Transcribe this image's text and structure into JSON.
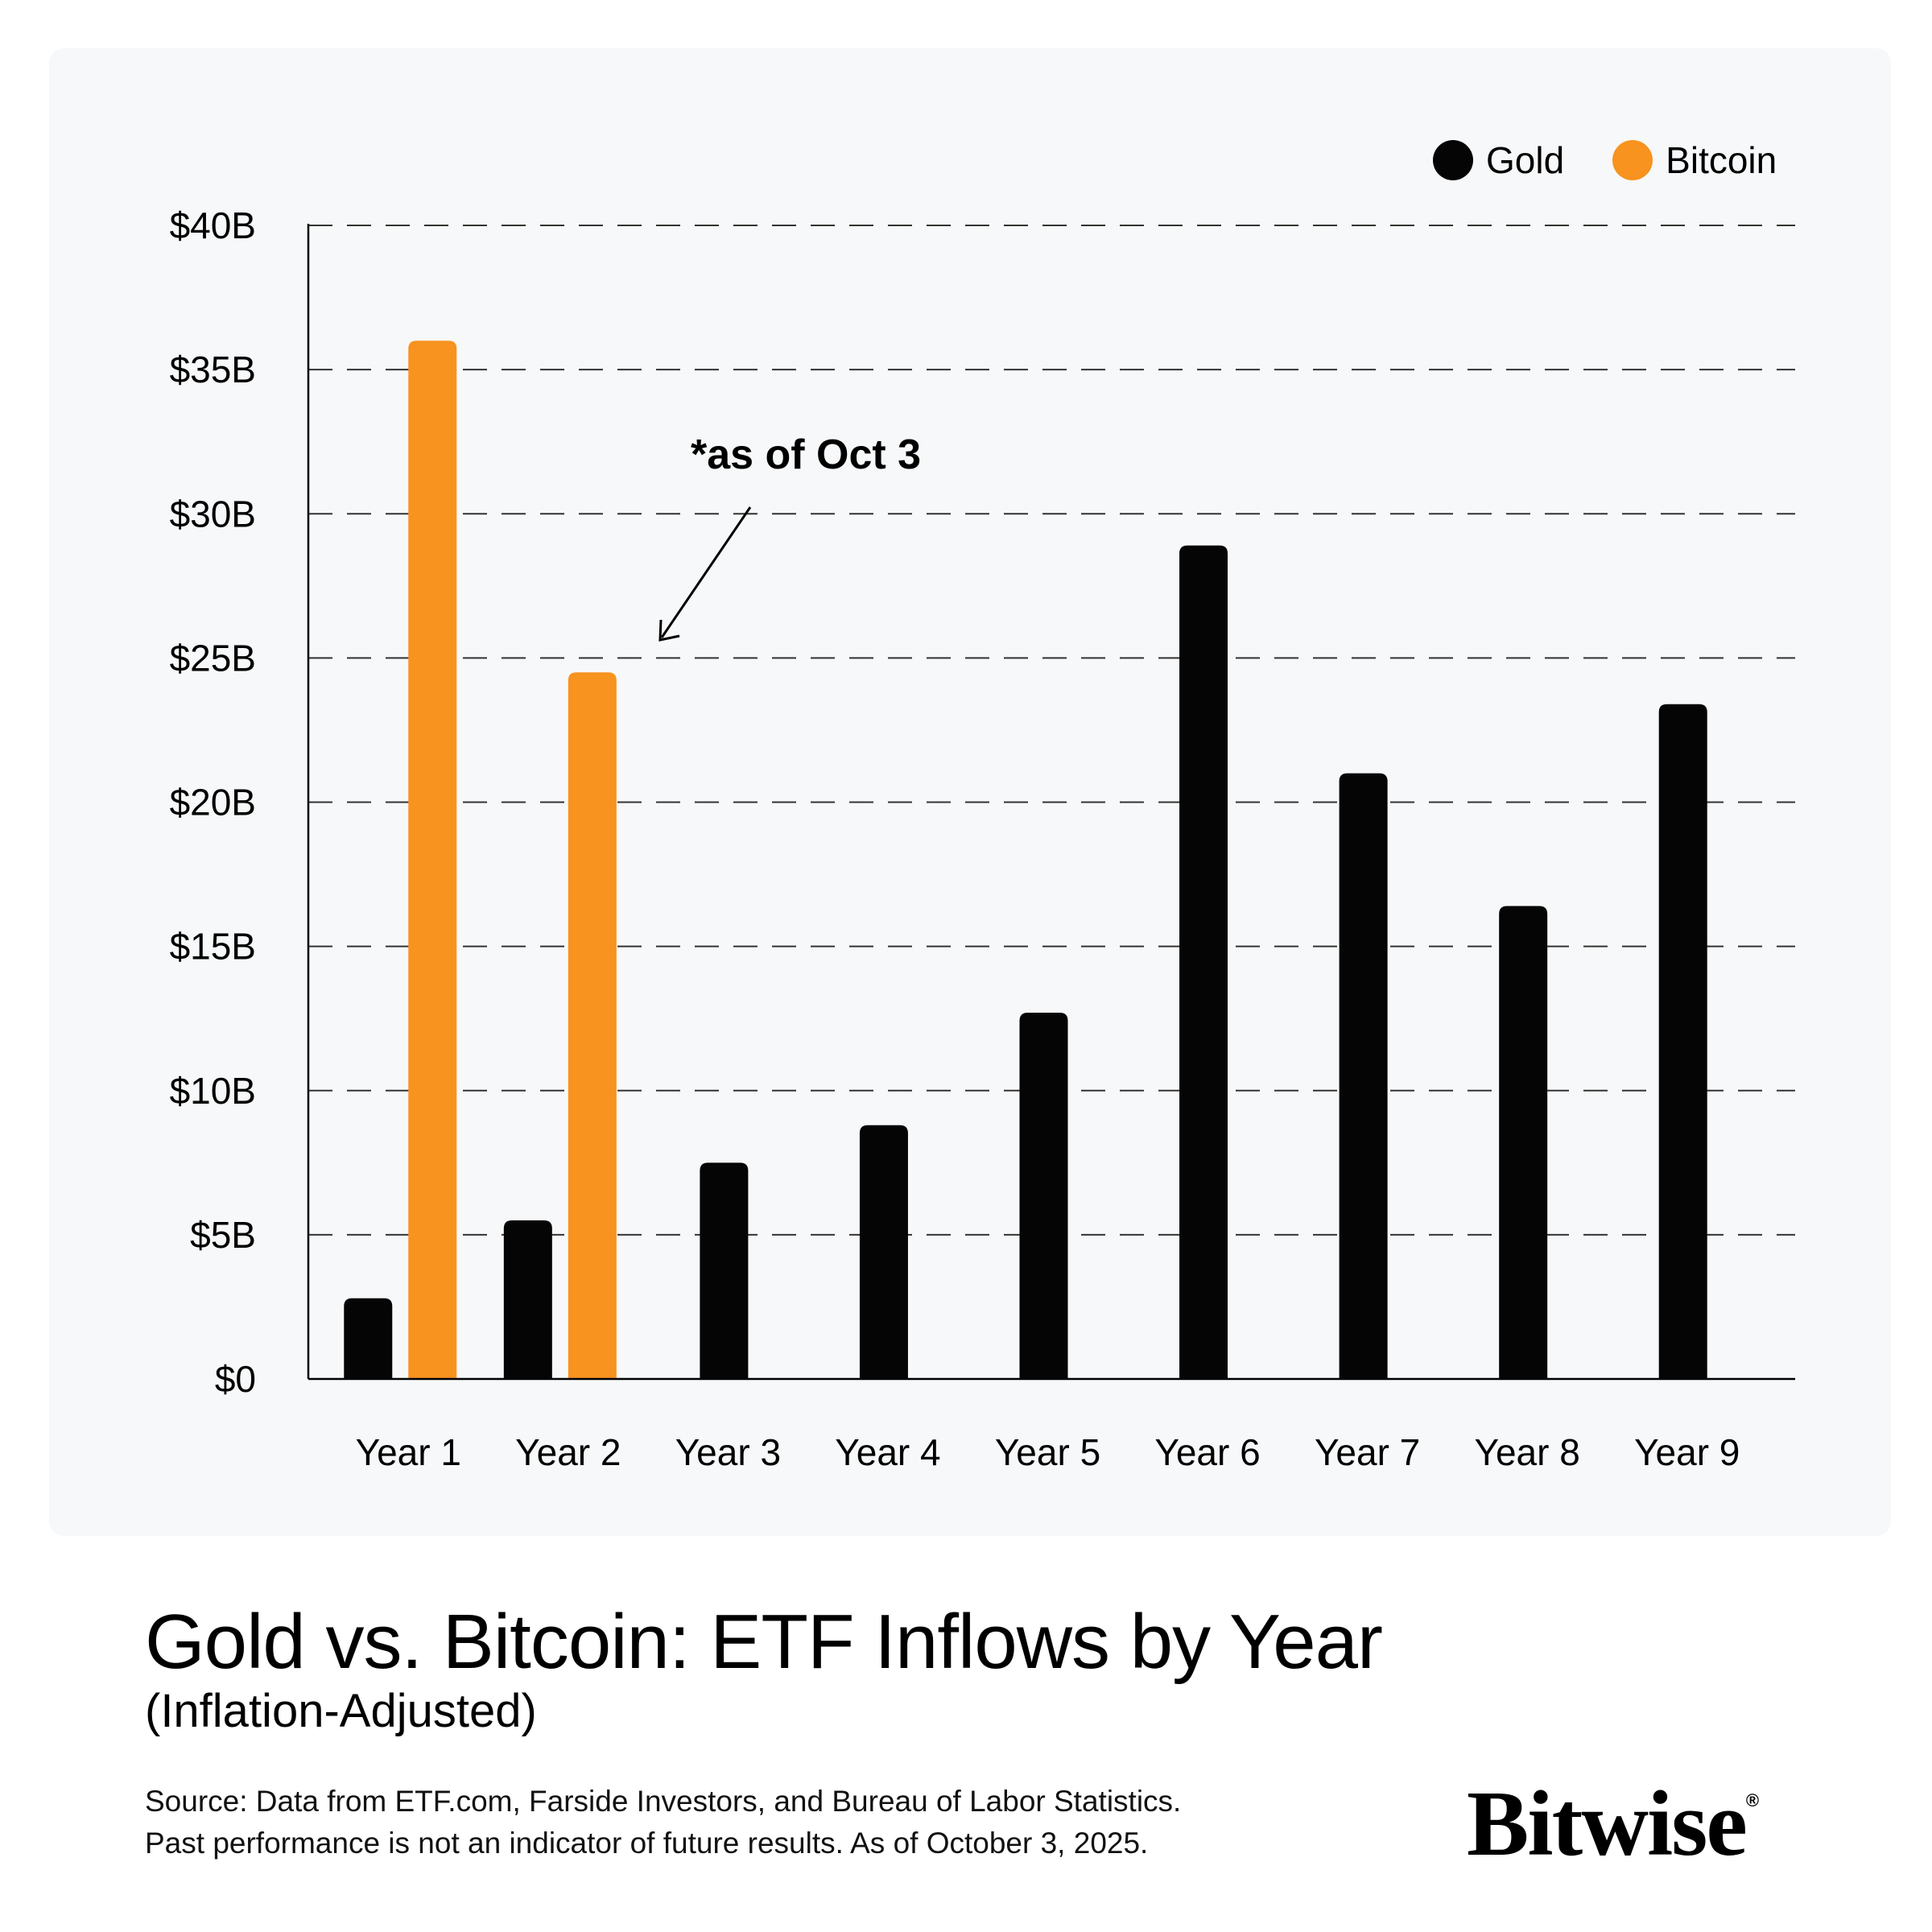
{
  "legend": [
    {
      "name": "Gold",
      "color": "#050505"
    },
    {
      "name": "Bitcoin",
      "color": "#f7931e"
    }
  ],
  "annotation": {
    "text": "*as of Oct 3",
    "target_series": "Bitcoin",
    "target_category": "Year 2"
  },
  "title": "Gold vs. Bitcoin: ETF Inflows by Year",
  "subtitle": "(Inflation-Adjusted)",
  "source_line1": "Source: Data from ETF.com, Farside Investors, and Bureau of Labor Statistics.",
  "source_line2": "Past performance is not an indicator of future results. As of October 3, 2025.",
  "logo": "Bitwise",
  "logo_mark": "®",
  "chart_data": {
    "type": "bar",
    "title": "Gold vs. Bitcoin: ETF Inflows by Year",
    "subtitle": "(Inflation-Adjusted)",
    "xlabel": "",
    "ylabel": "",
    "categories": [
      "Year 1",
      "Year 2",
      "Year 3",
      "Year 4",
      "Year 5",
      "Year 6",
      "Year 7",
      "Year 8",
      "Year 9"
    ],
    "series": [
      {
        "name": "Gold",
        "color": "#050505",
        "values": [
          2.8,
          5.5,
          7.5,
          8.8,
          12.7,
          28.9,
          21.0,
          16.4,
          23.4
        ]
      },
      {
        "name": "Bitcoin",
        "color": "#f7931e",
        "values": [
          36.0,
          24.5,
          null,
          null,
          null,
          null,
          null,
          null,
          null
        ]
      }
    ],
    "ylim": [
      0,
      40
    ],
    "yticks": [
      0,
      5,
      10,
      15,
      20,
      25,
      30,
      35,
      40
    ],
    "ytick_labels": [
      "$0",
      "$5B",
      "$10B",
      "$15B",
      "$20B",
      "$25B",
      "$30B",
      "$35B",
      "$40B"
    ],
    "grid": "dashed horizontal",
    "legend_position": "top-right"
  }
}
